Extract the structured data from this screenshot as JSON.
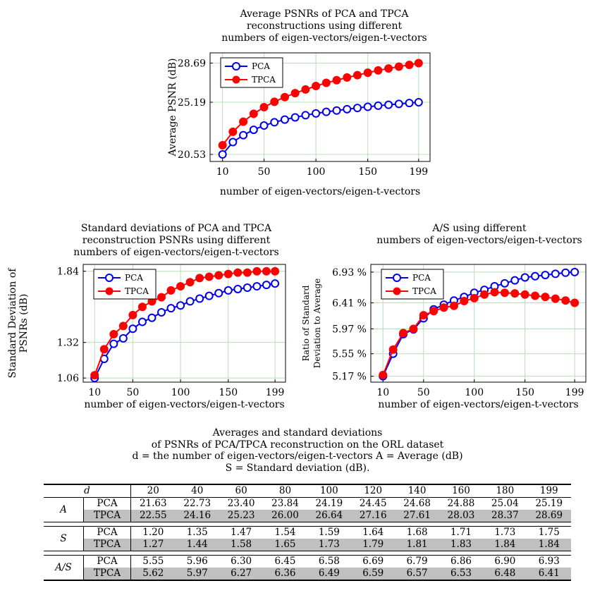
{
  "charts": [
    {
      "title": [
        "Average PSNRs of PCA and TPCA",
        "reconstructions using different",
        "numbers of eigen-vectors/eigen-t-vectors"
      ],
      "xlabel": "number of eigen-vectors/eigen-t-vectors",
      "ylabel": [
        "Average PSNR (dB)"
      ],
      "legend": [
        "PCA",
        "TPCA"
      ]
    },
    {
      "title": [
        "Standard deviations of PCA and TPCA",
        "reconstruction PSNRs using different",
        "numbers of eigen-vectors/eigen-t-vectors"
      ],
      "xlabel": "number of eigen-vectors/eigen-t-vectors",
      "ylabel": [
        "Standard Deviation of",
        "PSNRs (dB)"
      ],
      "legend": [
        "PCA",
        "TPCA"
      ]
    },
    {
      "title": [
        "A/S using different",
        "numbers of eigen-vectors/eigen-t-vectors"
      ],
      "xlabel": "number of eigen-vectors/eigen-t-vectors",
      "ylabel": [
        "Ratio of Standard",
        "Deviation to Average"
      ],
      "legend": [
        "PCA",
        "TPCA"
      ]
    }
  ],
  "chart_data": [
    {
      "type": "line",
      "x": [
        10,
        20,
        30,
        40,
        50,
        60,
        70,
        80,
        90,
        100,
        110,
        120,
        130,
        140,
        150,
        160,
        170,
        180,
        190,
        199
      ],
      "xticks": [
        10,
        50,
        100,
        150,
        199
      ],
      "yticks": [
        "20.53",
        "25.19",
        "28.69"
      ],
      "ylim": [
        19.9,
        29.6
      ],
      "xlim": [
        -2,
        210
      ],
      "grid": true,
      "legend_position": "top-left",
      "series": [
        {
          "name": "PCA",
          "color": "#0000ee",
          "values": [
            20.53,
            21.63,
            22.25,
            22.73,
            23.11,
            23.4,
            23.64,
            23.84,
            24.03,
            24.19,
            24.33,
            24.45,
            24.57,
            24.68,
            24.78,
            24.88,
            24.96,
            25.04,
            25.12,
            25.19
          ]
        },
        {
          "name": "TPCA",
          "color": "#ff0000",
          "values": [
            21.35,
            22.55,
            23.45,
            24.16,
            24.75,
            25.23,
            25.65,
            26.0,
            26.33,
            26.64,
            26.92,
            27.16,
            27.4,
            27.61,
            27.83,
            28.03,
            28.21,
            28.37,
            28.53,
            28.69
          ]
        }
      ]
    },
    {
      "type": "line",
      "x": [
        10,
        20,
        30,
        40,
        50,
        60,
        70,
        80,
        90,
        100,
        110,
        120,
        130,
        140,
        150,
        160,
        170,
        180,
        190,
        199
      ],
      "xticks": [
        10,
        50,
        100,
        150,
        199
      ],
      "yticks": [
        "1.06",
        "1.32",
        "1.84"
      ],
      "ylim": [
        1.03,
        1.89
      ],
      "xlim": [
        -2,
        210
      ],
      "grid": true,
      "legend_position": "top-left",
      "series": [
        {
          "name": "PCA",
          "color": "#0000ee",
          "values": [
            1.06,
            1.2,
            1.31,
            1.35,
            1.42,
            1.47,
            1.5,
            1.54,
            1.57,
            1.59,
            1.62,
            1.64,
            1.66,
            1.68,
            1.7,
            1.71,
            1.72,
            1.73,
            1.74,
            1.75
          ]
        },
        {
          "name": "TPCA",
          "color": "#ff0000",
          "values": [
            1.08,
            1.27,
            1.38,
            1.44,
            1.52,
            1.58,
            1.62,
            1.65,
            1.7,
            1.73,
            1.76,
            1.79,
            1.8,
            1.81,
            1.82,
            1.83,
            1.83,
            1.84,
            1.84,
            1.84
          ]
        }
      ]
    },
    {
      "type": "line",
      "x": [
        10,
        20,
        30,
        40,
        50,
        60,
        70,
        80,
        90,
        100,
        110,
        120,
        130,
        140,
        150,
        160,
        170,
        180,
        190,
        199
      ],
      "xticks": [
        10,
        50,
        100,
        150,
        199
      ],
      "yticks": [
        "5.17",
        "5.55",
        "5.97",
        "6.41",
        "6.93"
      ],
      "ytick_suffix": " %",
      "ylim": [
        5.07,
        7.06
      ],
      "xlim": [
        -2,
        210
      ],
      "grid": true,
      "legend_position": "top-left",
      "series": [
        {
          "name": "PCA",
          "color": "#0000ee",
          "values": [
            5.17,
            5.55,
            5.88,
            5.96,
            6.15,
            6.3,
            6.38,
            6.45,
            6.51,
            6.58,
            6.63,
            6.69,
            6.74,
            6.79,
            6.84,
            6.86,
            6.88,
            6.9,
            6.92,
            6.93
          ]
        },
        {
          "name": "TPCA",
          "color": "#ff0000",
          "values": [
            5.19,
            5.62,
            5.9,
            5.97,
            6.2,
            6.27,
            6.33,
            6.36,
            6.44,
            6.49,
            6.55,
            6.59,
            6.58,
            6.57,
            6.55,
            6.53,
            6.51,
            6.48,
            6.45,
            6.41
          ]
        }
      ]
    }
  ],
  "table": {
    "caption": [
      "Averages and standard deviations",
      "of PSNRs of PCA/TPCA reconstruction on the ORL dataset",
      "d = the number of eigen-vectors/eigen-t-vectors   A = Average (dB)",
      "S = Standard deviation (dB)."
    ],
    "corner": "d",
    "columns": [
      "20",
      "40",
      "60",
      "80",
      "100",
      "120",
      "140",
      "160",
      "180",
      "199"
    ],
    "groups": [
      {
        "label": "A",
        "rows": [
          {
            "method": "PCA",
            "values": [
              "21.63",
              "22.73",
              "23.40",
              "23.84",
              "24.19",
              "24.45",
              "24.68",
              "24.88",
              "25.04",
              "25.19"
            ]
          },
          {
            "method": "TPCA",
            "values": [
              "22.55",
              "24.16",
              "25.23",
              "26.00",
              "26.64",
              "27.16",
              "27.61",
              "28.03",
              "28.37",
              "28.69"
            ]
          }
        ]
      },
      {
        "label": "S",
        "rows": [
          {
            "method": "PCA",
            "values": [
              "1.20",
              "1.35",
              "1.47",
              "1.54",
              "1.59",
              "1.64",
              "1.68",
              "1.71",
              "1.73",
              "1.75"
            ]
          },
          {
            "method": "TPCA",
            "values": [
              "1.27",
              "1.44",
              "1.58",
              "1.65",
              "1.73",
              "1.79",
              "1.81",
              "1.83",
              "1.84",
              "1.84"
            ]
          }
        ]
      },
      {
        "label": "A/S",
        "rows": [
          {
            "method": "PCA",
            "values": [
              "5.55",
              "5.96",
              "6.30",
              "6.45",
              "6.58",
              "6.69",
              "6.79",
              "6.86",
              "6.90",
              "6.93"
            ]
          },
          {
            "method": "TPCA",
            "values": [
              "5.62",
              "5.97",
              "6.27",
              "6.36",
              "6.49",
              "6.59",
              "6.57",
              "6.53",
              "6.48",
              "6.41"
            ]
          }
        ]
      }
    ]
  }
}
